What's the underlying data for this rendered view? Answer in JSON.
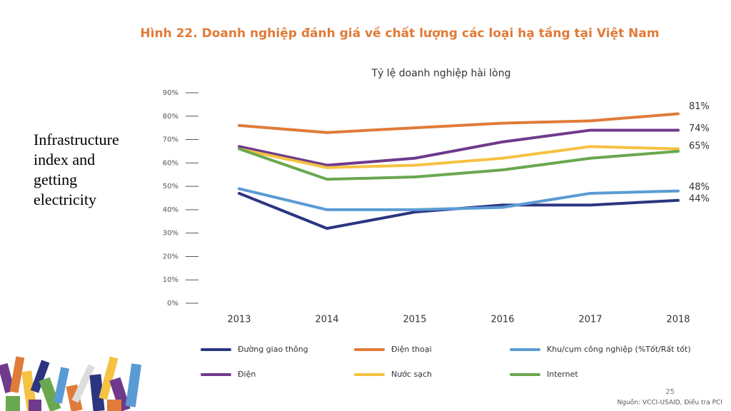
{
  "slide": {
    "side_text": "Infrastructure index and getting electricity",
    "page_number": "25",
    "source": "Nguồn: VCCI-USAID, Điều tra PCI"
  },
  "chart_data": {
    "type": "line",
    "title": "Hình 22. Doanh nghiệp đánh giá về chất lượng các loại hạ tầng tại Việt Nam",
    "subtitle": "Tỷ lệ doanh nghiệp hài lòng",
    "categories": [
      "2013",
      "2014",
      "2015",
      "2016",
      "2017",
      "2018"
    ],
    "ylim": [
      0,
      90
    ],
    "yticks": [
      {
        "value": 0,
        "label": "0%"
      },
      {
        "value": 10,
        "label": "10%"
      },
      {
        "value": 20,
        "label": "20%"
      },
      {
        "value": 30,
        "label": "30%"
      },
      {
        "value": 40,
        "label": "40%"
      },
      {
        "value": 50,
        "label": "50%"
      },
      {
        "value": 60,
        "label": "60%"
      },
      {
        "value": 70,
        "label": "70%"
      },
      {
        "value": 80,
        "label": "80%"
      },
      {
        "value": 90,
        "label": "90%"
      }
    ],
    "grid": false,
    "series": [
      {
        "name": "Đường giao thông",
        "color": "#2b3580",
        "values": [
          47,
          32,
          39,
          42,
          42,
          44
        ],
        "value_labels": [
          null,
          null,
          null,
          null,
          null,
          "44%"
        ]
      },
      {
        "name": "Điện thoại",
        "color": "#e07b39",
        "values": [
          76,
          73,
          75,
          77,
          78,
          81
        ],
        "value_labels": [
          null,
          null,
          null,
          null,
          null,
          "81%"
        ]
      },
      {
        "name": "Khu/cụm công nghiệp (%Tốt/Rất tốt)",
        "color": "#5b9bd5",
        "values": [
          49,
          40,
          40,
          41,
          47,
          48
        ],
        "value_labels": [
          null,
          null,
          null,
          null,
          null,
          "48%"
        ]
      },
      {
        "name": "Điện",
        "color": "#6f3a8c",
        "values": [
          67,
          59,
          62,
          69,
          74,
          74
        ],
        "value_labels": [
          null,
          null,
          null,
          null,
          null,
          "74%"
        ]
      },
      {
        "name": "Nước sạch",
        "color": "#f5c242",
        "values": [
          66,
          58,
          59,
          62,
          67,
          66
        ]
      },
      {
        "name": "Internet",
        "color": "#6aa84f",
        "values": [
          66,
          53,
          54,
          57,
          62,
          65
        ],
        "value_labels": [
          null,
          null,
          null,
          null,
          null,
          "65%"
        ]
      }
    ]
  }
}
